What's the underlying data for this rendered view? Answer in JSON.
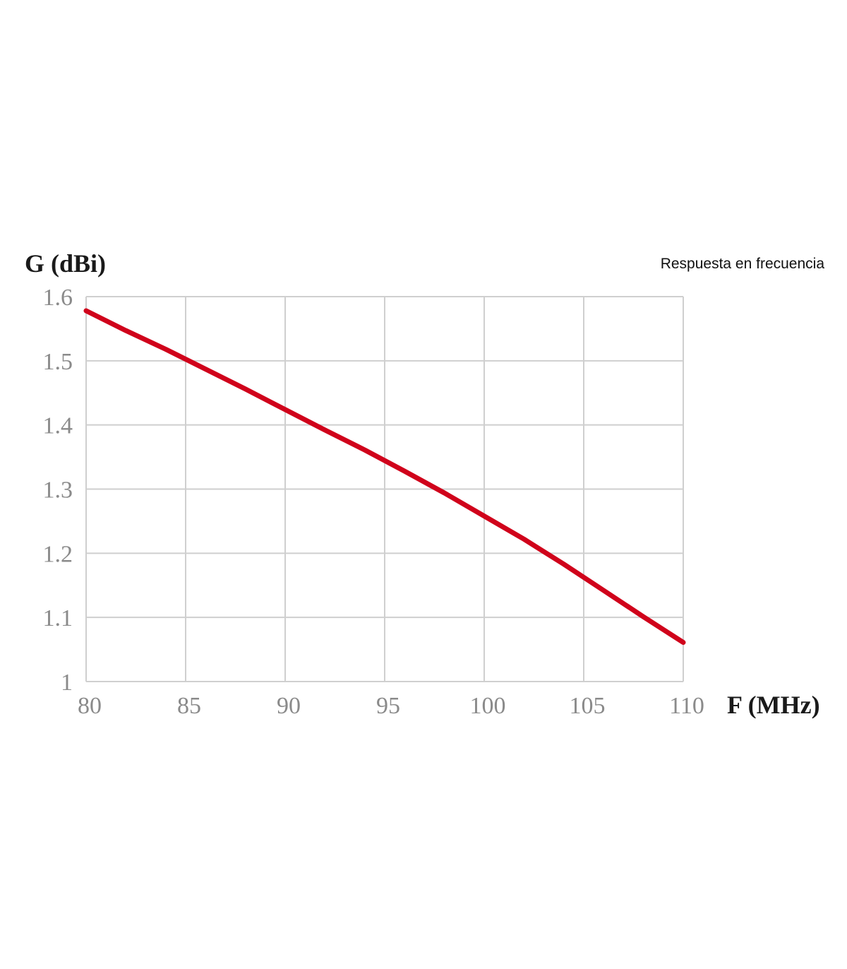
{
  "chart_data": {
    "type": "line",
    "title": "Respuesta en frecuencia",
    "xlabel": "F (MHz)",
    "ylabel": "G (dBi)",
    "xlim": [
      80,
      110
    ],
    "ylim": [
      1,
      1.6
    ],
    "x_ticks": [
      80,
      85,
      90,
      95,
      100,
      105,
      110
    ],
    "x_tick_labels": [
      "80",
      "85",
      "90",
      "95",
      "100",
      "105",
      "110"
    ],
    "y_ticks": [
      1,
      1.1,
      1.2,
      1.3,
      1.4,
      1.5,
      1.6
    ],
    "y_tick_labels": [
      "1",
      "1.1",
      "1.2",
      "1.3",
      "1.4",
      "1.5",
      "1.6"
    ],
    "grid": true,
    "series": [
      {
        "color": "#d0021b",
        "x": [
          80,
          82,
          84,
          86,
          88,
          90,
          92,
          94,
          96,
          98,
          100,
          102,
          104,
          106,
          108,
          110
        ],
        "y": [
          1.578,
          1.547,
          1.518,
          1.487,
          1.456,
          1.424,
          1.392,
          1.361,
          1.328,
          1.294,
          1.258,
          1.222,
          1.183,
          1.142,
          1.101,
          1.061
        ]
      }
    ]
  }
}
